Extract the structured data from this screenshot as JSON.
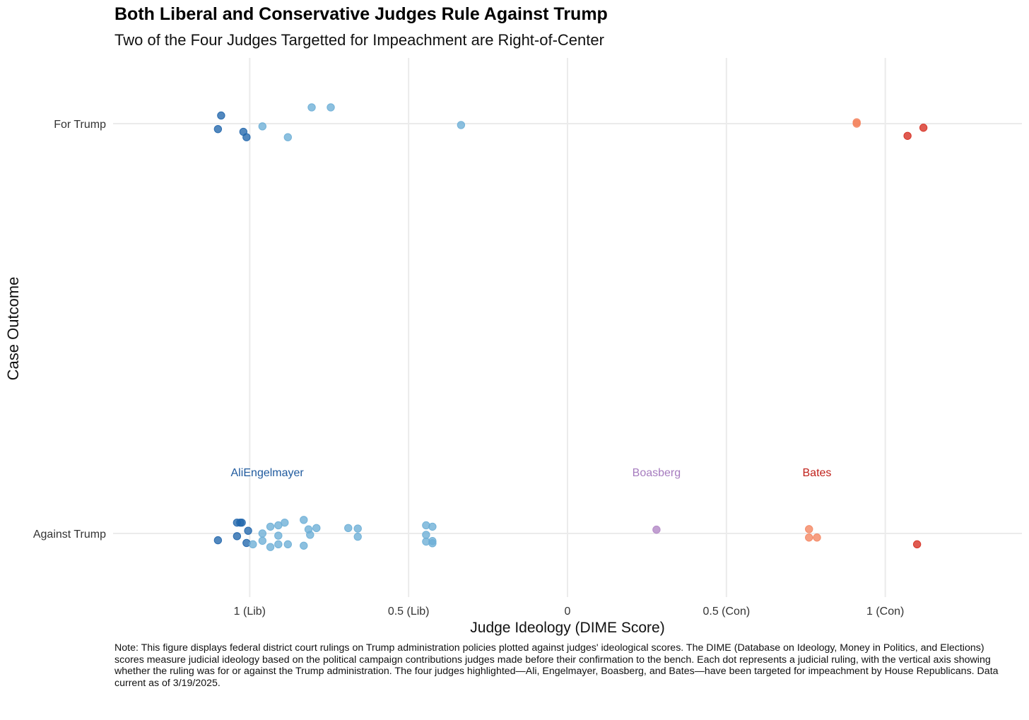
{
  "title": "Both Liberal and Conservative Judges Rule Against Trump",
  "subtitle": "Two of the Four Judges Targetted for Impeachment are Right-of-Center",
  "note": "Note: This figure displays federal district court rulings on Trump administration policies plotted against judges' ideological scores. The DIME (Database on Ideology, Money in Politics, and Elections) scores measure judicial ideology based on the political campaign contributions judges made before their confirmation to the bench. Each dot represents a judicial ruling, with the vertical axis showing whether the ruling was for or against the Trump administration. The four judges highlighted—Ali, Engelmayer, Boasberg, and Bates—have been targeted for impeachment by House Republicans. Data current as of 3/19/2025.",
  "colors": {
    "strong_lib": "#2166ac",
    "lib": "#6baed6",
    "con": "#f4845f",
    "strong_con": "#d62d20",
    "boasberg": "#b084c4",
    "grid": "#ebebeb",
    "label_lib": "#1f5a9e",
    "label_boasberg": "#a67cbf",
    "label_bates": "#c0201a"
  },
  "chart_data": {
    "type": "scatter",
    "xlabel": "Judge Ideology (DIME Score)",
    "ylabel": "Case Outcome",
    "xlim": [
      -1.43,
      1.43
    ],
    "categories": [
      "Against Trump",
      "For Trump"
    ],
    "xticks": [
      {
        "value": -1,
        "label": "1 (Lib)"
      },
      {
        "value": -0.5,
        "label": "0.5 (Lib)"
      },
      {
        "value": 0,
        "label": "0"
      },
      {
        "value": 0.5,
        "label": "0.5 (Con)"
      },
      {
        "value": 1,
        "label": "1 (Con)"
      }
    ],
    "grid": true,
    "legend": "none",
    "points": [
      {
        "x": -1.09,
        "y": "For Trump",
        "jitter": 0.03,
        "group": "strong_lib"
      },
      {
        "x": -1.1,
        "y": "For Trump",
        "jitter": -0.02,
        "group": "strong_lib"
      },
      {
        "x": -1.02,
        "y": "For Trump",
        "jitter": -0.03,
        "group": "strong_lib"
      },
      {
        "x": -1.01,
        "y": "For Trump",
        "jitter": -0.05,
        "group": "strong_lib"
      },
      {
        "x": -0.96,
        "y": "For Trump",
        "jitter": -0.01,
        "group": "lib"
      },
      {
        "x": -0.88,
        "y": "For Trump",
        "jitter": -0.05,
        "group": "lib"
      },
      {
        "x": -0.805,
        "y": "For Trump",
        "jitter": 0.06,
        "group": "lib"
      },
      {
        "x": -0.745,
        "y": "For Trump",
        "jitter": 0.06,
        "group": "lib"
      },
      {
        "x": -0.335,
        "y": "For Trump",
        "jitter": -0.005,
        "group": "lib"
      },
      {
        "x": 0.91,
        "y": "For Trump",
        "jitter": 0.005,
        "group": "con"
      },
      {
        "x": 0.91,
        "y": "For Trump",
        "jitter": 0.0,
        "group": "con"
      },
      {
        "x": 1.07,
        "y": "For Trump",
        "jitter": -0.045,
        "group": "strong_con"
      },
      {
        "x": 1.12,
        "y": "For Trump",
        "jitter": -0.015,
        "group": "strong_con"
      },
      {
        "x": -1.04,
        "y": "Against Trump",
        "jitter": 0.04,
        "group": "strong_lib"
      },
      {
        "x": -1.03,
        "y": "Against Trump",
        "jitter": 0.04,
        "group": "strong_lib"
      },
      {
        "x": -1.025,
        "y": "Against Trump",
        "jitter": 0.04,
        "group": "strong_lib"
      },
      {
        "x": -1.005,
        "y": "Against Trump",
        "jitter": 0.01,
        "group": "strong_lib"
      },
      {
        "x": -1.04,
        "y": "Against Trump",
        "jitter": -0.01,
        "group": "strong_lib"
      },
      {
        "x": -1.1,
        "y": "Against Trump",
        "jitter": -0.025,
        "group": "strong_lib"
      },
      {
        "x": -1.01,
        "y": "Against Trump",
        "jitter": -0.035,
        "group": "strong_lib"
      },
      {
        "x": -0.83,
        "y": "Against Trump",
        "jitter": 0.05,
        "group": "lib"
      },
      {
        "x": -0.89,
        "y": "Against Trump",
        "jitter": 0.04,
        "group": "lib"
      },
      {
        "x": -0.91,
        "y": "Against Trump",
        "jitter": 0.03,
        "group": "lib"
      },
      {
        "x": -0.935,
        "y": "Against Trump",
        "jitter": 0.025,
        "group": "lib"
      },
      {
        "x": -0.79,
        "y": "Against Trump",
        "jitter": 0.02,
        "group": "lib"
      },
      {
        "x": -0.815,
        "y": "Against Trump",
        "jitter": 0.015,
        "group": "lib"
      },
      {
        "x": -0.69,
        "y": "Against Trump",
        "jitter": 0.02,
        "group": "lib"
      },
      {
        "x": -0.66,
        "y": "Against Trump",
        "jitter": 0.018,
        "group": "lib"
      },
      {
        "x": -0.96,
        "y": "Against Trump",
        "jitter": 0.0,
        "group": "lib"
      },
      {
        "x": -0.91,
        "y": "Against Trump",
        "jitter": -0.008,
        "group": "lib"
      },
      {
        "x": -0.81,
        "y": "Against Trump",
        "jitter": -0.005,
        "group": "lib"
      },
      {
        "x": -0.66,
        "y": "Against Trump",
        "jitter": -0.012,
        "group": "lib"
      },
      {
        "x": -0.96,
        "y": "Against Trump",
        "jitter": -0.027,
        "group": "lib"
      },
      {
        "x": -0.99,
        "y": "Against Trump",
        "jitter": -0.04,
        "group": "lib"
      },
      {
        "x": -0.91,
        "y": "Against Trump",
        "jitter": -0.04,
        "group": "lib"
      },
      {
        "x": -0.88,
        "y": "Against Trump",
        "jitter": -0.04,
        "group": "lib"
      },
      {
        "x": -0.83,
        "y": "Against Trump",
        "jitter": -0.045,
        "group": "lib"
      },
      {
        "x": -0.935,
        "y": "Against Trump",
        "jitter": -0.05,
        "group": "lib"
      },
      {
        "x": -0.445,
        "y": "Against Trump",
        "jitter": 0.03,
        "group": "lib"
      },
      {
        "x": -0.425,
        "y": "Against Trump",
        "jitter": 0.025,
        "group": "lib"
      },
      {
        "x": -0.445,
        "y": "Against Trump",
        "jitter": -0.005,
        "group": "lib"
      },
      {
        "x": -0.445,
        "y": "Against Trump",
        "jitter": -0.03,
        "group": "lib"
      },
      {
        "x": -0.425,
        "y": "Against Trump",
        "jitter": -0.028,
        "group": "lib"
      },
      {
        "x": -0.425,
        "y": "Against Trump",
        "jitter": -0.036,
        "group": "lib"
      },
      {
        "x": 0.28,
        "y": "Against Trump",
        "jitter": 0.014,
        "group": "boasberg"
      },
      {
        "x": 0.76,
        "y": "Against Trump",
        "jitter": 0.016,
        "group": "con"
      },
      {
        "x": 0.76,
        "y": "Against Trump",
        "jitter": -0.015,
        "group": "con"
      },
      {
        "x": 0.785,
        "y": "Against Trump",
        "jitter": -0.015,
        "group": "con"
      },
      {
        "x": 1.1,
        "y": "Against Trump",
        "jitter": -0.04,
        "group": "strong_con"
      }
    ],
    "annotations": [
      {
        "text": "Ali",
        "x": -1.04,
        "color_key": "label_lib"
      },
      {
        "text": "Engelmayer",
        "x": -0.925,
        "color_key": "label_lib"
      },
      {
        "text": "Boasberg",
        "x": 0.28,
        "color_key": "label_boasberg"
      },
      {
        "text": "Bates",
        "x": 0.785,
        "color_key": "label_bates"
      }
    ]
  }
}
